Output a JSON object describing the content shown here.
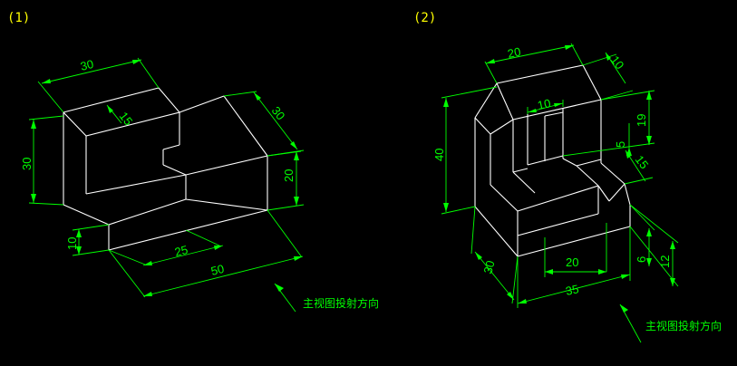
{
  "figure1": {
    "label": "(1)",
    "dims": {
      "width_top": "30",
      "depth_top": "15",
      "depth_right": "30",
      "height_left": "30",
      "height_right": "20",
      "height_base": "10",
      "length_mid": "25",
      "length_total": "50"
    },
    "caption": "主视图投射方向"
  },
  "figure2": {
    "label": "(2)",
    "dims": {
      "width_top": "20",
      "chamfer_top": "10",
      "slot_width": "10",
      "height_total": "40",
      "height_slot": "19",
      "step_small": "5",
      "step_right": "15",
      "depth_base": "30",
      "slot_bottom": "20",
      "length_base": "35",
      "height_small": "6",
      "height_base": "12"
    },
    "caption": "主视图投射方向"
  }
}
